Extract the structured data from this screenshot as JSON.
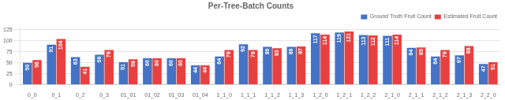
{
  "chart_data": {
    "type": "bar",
    "title": "Per-Tree-Batch Counts",
    "categories": [
      "0_0",
      "0_1",
      "0_2",
      "0_3",
      "01_01",
      "01_02",
      "01_03",
      "01_04",
      "1_1_0",
      "1_1_1",
      "1_1_2",
      "1_1_3",
      "1_2_0",
      "1_2_1",
      "1_2_2",
      "2_1_0",
      "2_1_1",
      "2_1_2",
      "2_1_3",
      "2_2_0"
    ],
    "series": [
      {
        "name": "Ground Truth Fruit Count",
        "color": "#4472C4",
        "values": [
          50,
          91,
          63,
          68,
          51,
          60,
          60,
          44,
          64,
          92,
          86,
          86,
          117,
          119,
          113,
          111,
          84,
          64,
          67,
          47
        ]
      },
      {
        "name": "Estimated Fruit Count",
        "color": "#E84040",
        "values": [
          56,
          104,
          41,
          79,
          58,
          60,
          60,
          44,
          79,
          79,
          83,
          87,
          114,
          121,
          112,
          114,
          85,
          79,
          88,
          51
        ]
      }
    ],
    "ylim": [
      0,
      130
    ],
    "yticks": [
      0,
      25,
      50,
      75,
      100,
      125
    ],
    "grid": true,
    "legend": "upper right",
    "data_labels": true
  }
}
